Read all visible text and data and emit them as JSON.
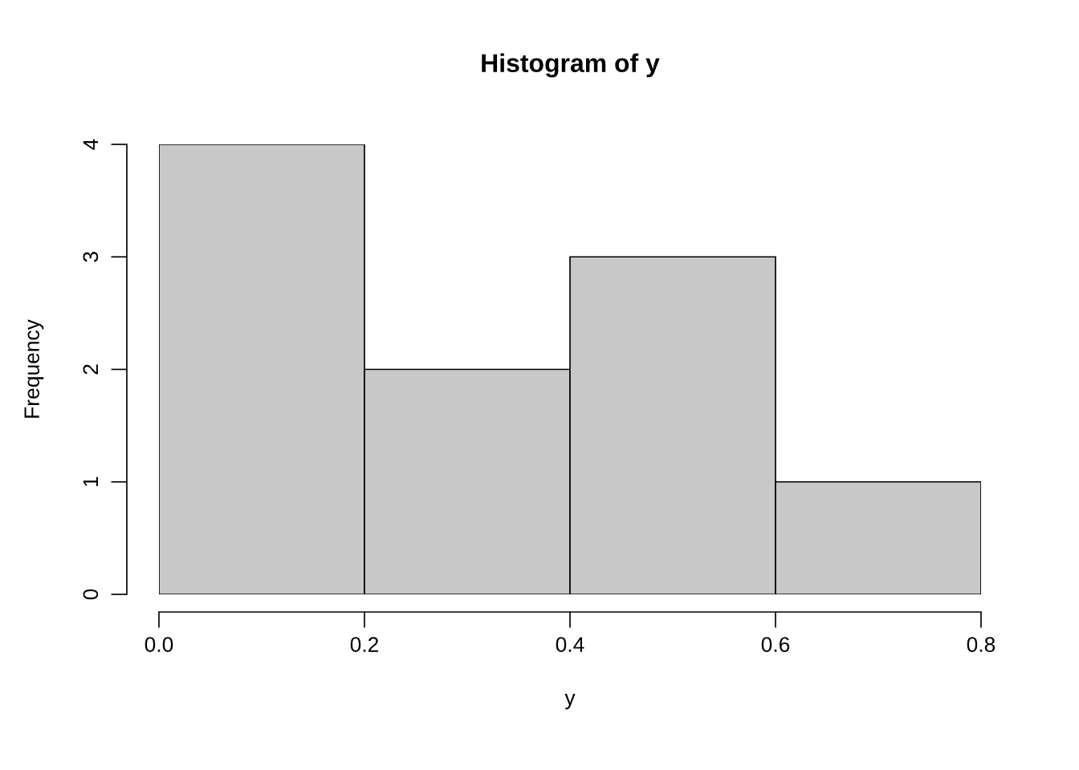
{
  "chart_data": {
    "type": "histogram",
    "title": "Histogram of y",
    "xlabel": "y",
    "ylabel": "Frequency",
    "bins": [
      0.0,
      0.2,
      0.4,
      0.6,
      0.8
    ],
    "values": [
      4,
      2,
      3,
      1
    ],
    "color": "#c8c8c8",
    "xlim": [
      0,
      0.8
    ],
    "ylim": [
      0,
      4
    ],
    "xticks": [
      {
        "value": 0,
        "label": "0.0"
      },
      {
        "value": 0.2,
        "label": "0.2"
      },
      {
        "value": 0.4,
        "label": "0.4"
      },
      {
        "value": 0.6,
        "label": "0.6"
      },
      {
        "value": 0.8,
        "label": "0.8"
      }
    ],
    "yticks": [
      0,
      1,
      2,
      3,
      4
    ]
  }
}
